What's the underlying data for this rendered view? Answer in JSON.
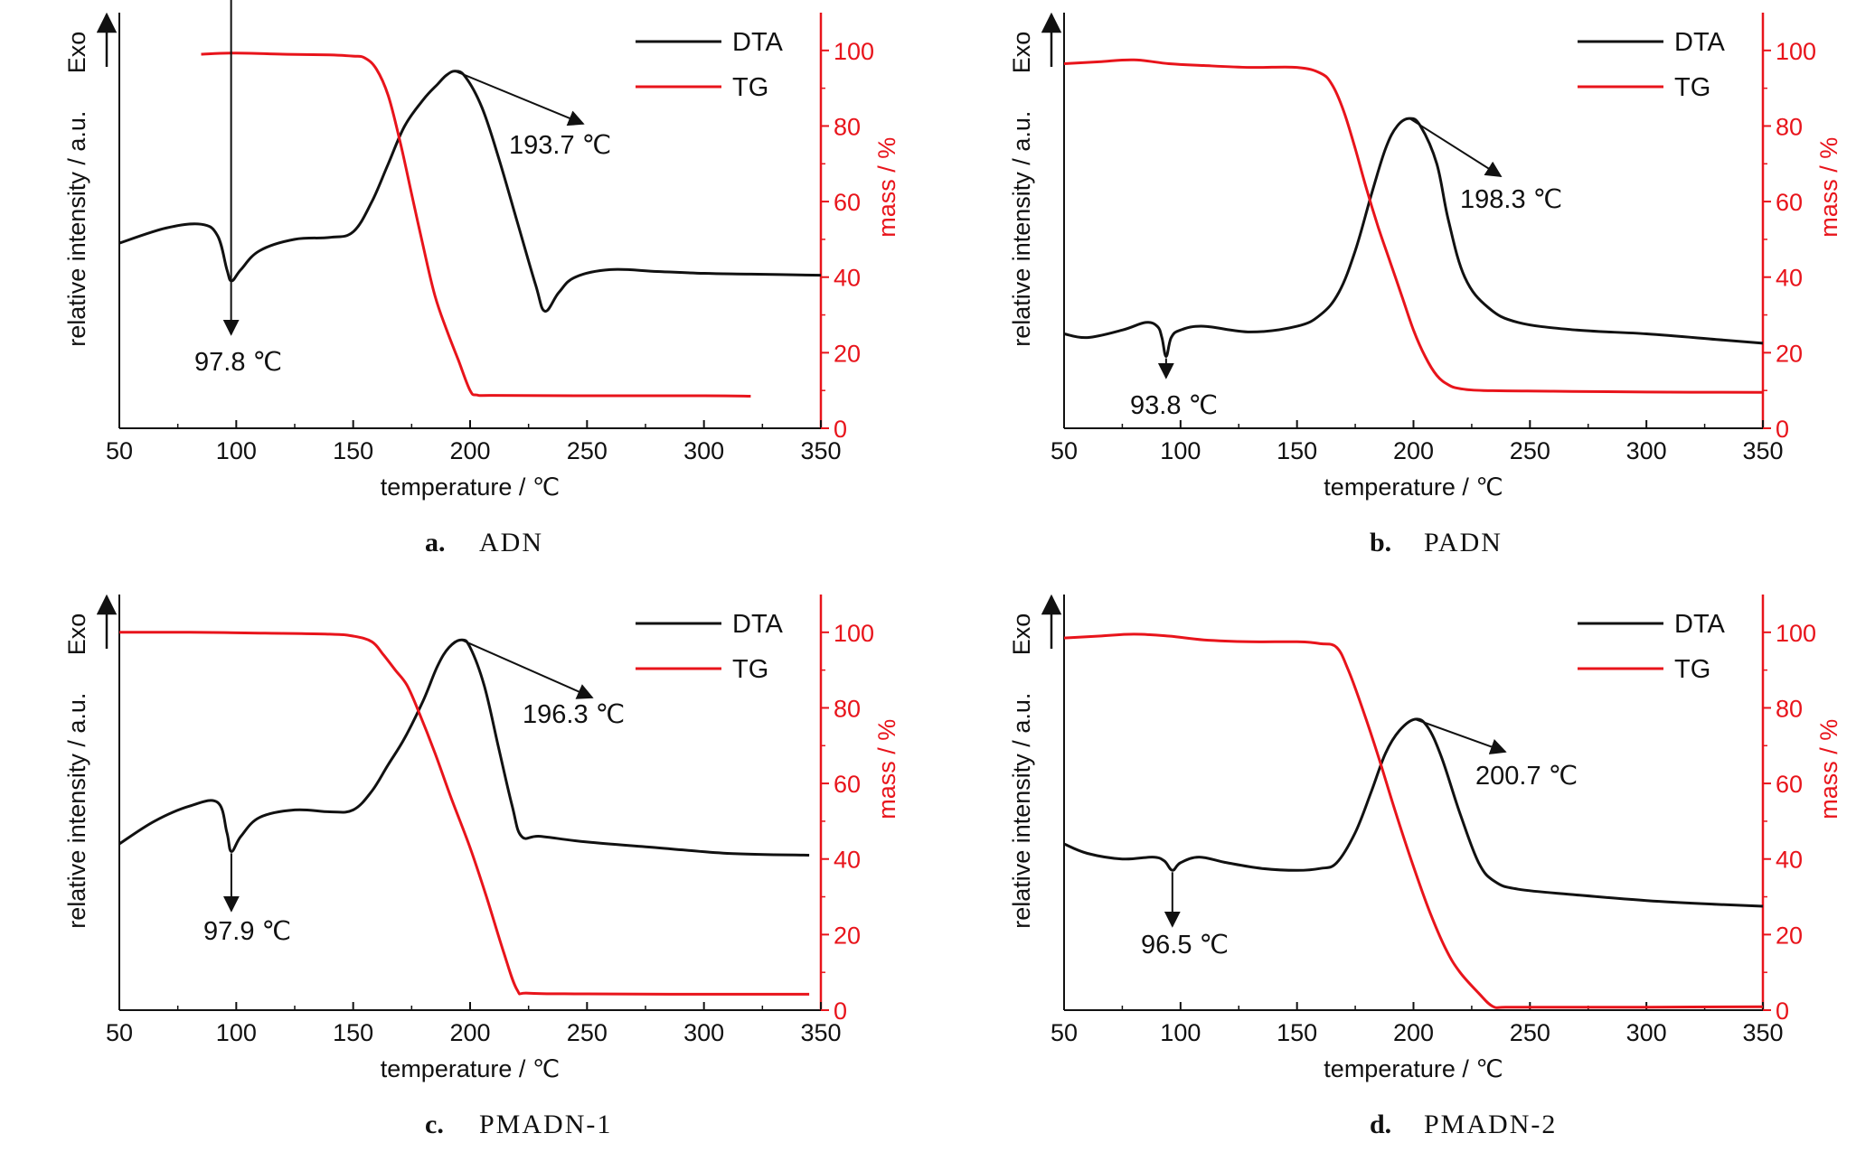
{
  "colors": {
    "dta": "#111111",
    "tg": "#e8141b",
    "axis": "#111111"
  },
  "chart_data": [
    {
      "type": "line",
      "panel_letter": "a.",
      "panel_name": "ADN",
      "xlabel": "temperature / ℃",
      "ylabel": "relative intensity / a.u.",
      "y2label": "mass / %",
      "exo_label": "Exo",
      "xlim": [
        50,
        350
      ],
      "y2lim": [
        0,
        110
      ],
      "xticks": [
        50,
        100,
        150,
        200,
        250,
        300,
        350
      ],
      "y2ticks": [
        0,
        20,
        40,
        60,
        80,
        100
      ],
      "legend": [
        "DTA",
        "TG"
      ],
      "legend_position": "top-right",
      "series": [
        {
          "name": "DTA",
          "axis": "left",
          "x": [
            50,
            70,
            85,
            92,
            96,
            98,
            102,
            110,
            125,
            140,
            150,
            158,
            165,
            172,
            180,
            186,
            190,
            193.7,
            198,
            205,
            212,
            220,
            228,
            232,
            238,
            245,
            260,
            280,
            300,
            320,
            350
          ],
          "y": [
            49,
            53,
            54,
            51,
            42,
            39,
            42,
            47,
            50,
            50.5,
            52,
            60,
            70,
            80,
            87,
            91,
            93.5,
            94.5,
            93,
            85,
            72,
            55,
            38,
            31,
            36,
            40,
            42,
            41.5,
            41,
            40.8,
            40.5
          ]
        },
        {
          "name": "TG",
          "axis": "right",
          "x": [
            85,
            100,
            120,
            140,
            150,
            155,
            160,
            165,
            170,
            175,
            180,
            185,
            190,
            195,
            200,
            203,
            210,
            250,
            300,
            320
          ],
          "y": [
            99,
            99.3,
            99,
            98.8,
            98.5,
            98,
            95,
            88,
            76,
            62,
            48,
            35,
            26,
            18,
            10,
            8.8,
            8.7,
            8.6,
            8.6,
            8.5
          ]
        }
      ],
      "annotations": [
        {
          "text": "193.7 ℃",
          "x": 193.7
        },
        {
          "text": "97.8 ℃",
          "x": 97.8
        }
      ]
    },
    {
      "type": "line",
      "panel_letter": "b.",
      "panel_name": "PADN",
      "xlabel": "temperature / ℃",
      "ylabel": "relative intensity / a.u.",
      "y2label": "mass / %",
      "exo_label": "Exo",
      "xlim": [
        50,
        350
      ],
      "y2lim": [
        0,
        110
      ],
      "xticks": [
        50,
        100,
        150,
        200,
        250,
        300,
        350
      ],
      "y2ticks": [
        0,
        20,
        40,
        60,
        80,
        100
      ],
      "legend": [
        "DTA",
        "TG"
      ],
      "legend_position": "top-right",
      "series": [
        {
          "name": "DTA",
          "axis": "left",
          "x": [
            50,
            60,
            75,
            85,
            90,
            92,
            93.8,
            96,
            100,
            110,
            130,
            150,
            160,
            168,
            175,
            182,
            188,
            193,
            198.3,
            203,
            210,
            215,
            222,
            232,
            245,
            270,
            300,
            330,
            350
          ],
          "y": [
            25,
            24,
            26,
            28,
            27,
            24,
            19,
            24,
            26,
            27,
            25.5,
            27,
            30,
            36,
            47,
            62,
            74,
            80,
            82,
            80,
            70,
            55,
            40,
            32,
            28,
            26,
            25,
            23.5,
            22.5
          ]
        },
        {
          "name": "TG",
          "axis": "right",
          "x": [
            50,
            65,
            80,
            95,
            110,
            130,
            150,
            160,
            165,
            170,
            175,
            180,
            185,
            190,
            195,
            200,
            205,
            210,
            215,
            220,
            230,
            260,
            300,
            350
          ],
          "y": [
            96.5,
            97,
            97.5,
            96.5,
            96,
            95.5,
            95.5,
            94,
            91,
            84,
            74,
            63,
            53,
            44,
            35,
            26,
            19,
            14,
            11.5,
            10.5,
            10,
            9.8,
            9.6,
            9.5
          ]
        }
      ],
      "annotations": [
        {
          "text": "198.3 ℃",
          "x": 198.3
        },
        {
          "text": "93.8 ℃",
          "x": 93.8
        }
      ]
    },
    {
      "type": "line",
      "panel_letter": "c.",
      "panel_name": "PMADN-1",
      "xlabel": "temperature / ℃",
      "ylabel": "relative intensity / a.u.",
      "y2label": "mass / %",
      "exo_label": "Exo",
      "xlim": [
        50,
        350
      ],
      "y2lim": [
        0,
        110
      ],
      "xticks": [
        50,
        100,
        150,
        200,
        250,
        300,
        350
      ],
      "y2ticks": [
        0,
        20,
        40,
        60,
        80,
        100
      ],
      "legend": [
        "DTA",
        "TG"
      ],
      "legend_position": "top-right",
      "series": [
        {
          "name": "DTA",
          "axis": "left",
          "x": [
            50,
            65,
            80,
            92,
            96,
            97.9,
            102,
            110,
            125,
            140,
            150,
            158,
            165,
            172,
            180,
            186,
            191,
            196.3,
            200,
            206,
            212,
            218,
            222,
            230,
            250,
            280,
            310,
            345
          ],
          "y": [
            44,
            50,
            54,
            55,
            47,
            42,
            46,
            51,
            53,
            52.5,
            53,
            58,
            65,
            72,
            82,
            91,
            96,
            98,
            96,
            86,
            70,
            54,
            46,
            46,
            44.5,
            43,
            41.5,
            41
          ]
        },
        {
          "name": "TG",
          "axis": "right",
          "x": [
            50,
            80,
            110,
            140,
            150,
            158,
            163,
            168,
            173,
            178,
            185,
            192,
            200,
            207,
            214,
            220,
            225,
            250,
            300,
            345
          ],
          "y": [
            100,
            100,
            99.8,
            99.5,
            99,
            97.5,
            94,
            90,
            86,
            79,
            68,
            56,
            43,
            30,
            16,
            5.5,
            4.5,
            4.3,
            4.2,
            4.2
          ]
        }
      ],
      "annotations": [
        {
          "text": "196.3 ℃",
          "x": 196.3
        },
        {
          "text": "97.9 ℃",
          "x": 97.9
        }
      ]
    },
    {
      "type": "line",
      "panel_letter": "d.",
      "panel_name": "PMADN-2",
      "xlabel": "temperature / ℃",
      "ylabel": "relative intensity / a.u.",
      "y2label": "mass / %",
      "exo_label": "Exo",
      "xlim": [
        50,
        350
      ],
      "y2lim": [
        0,
        110
      ],
      "xticks": [
        50,
        100,
        150,
        200,
        250,
        300,
        350
      ],
      "y2ticks": [
        0,
        20,
        40,
        60,
        80,
        100
      ],
      "legend": [
        "DTA",
        "TG"
      ],
      "legend_position": "top-right",
      "series": [
        {
          "name": "DTA",
          "axis": "left",
          "x": [
            50,
            60,
            75,
            88,
            93,
            96.5,
            100,
            108,
            120,
            135,
            150,
            160,
            167,
            175,
            182,
            188,
            194,
            200.7,
            206,
            212,
            220,
            228,
            235,
            245,
            270,
            300,
            330,
            350
          ],
          "y": [
            44,
            41.5,
            40,
            40.5,
            39.5,
            37,
            39,
            40.5,
            39,
            37.5,
            37,
            37.5,
            39,
            47,
            58,
            68,
            74,
            77,
            75,
            67,
            52,
            39,
            34,
            32,
            30.5,
            29,
            28,
            27.5
          ]
        },
        {
          "name": "TG",
          "axis": "right",
          "x": [
            50,
            65,
            80,
            95,
            110,
            130,
            150,
            160,
            167,
            172,
            178,
            185,
            192,
            200,
            207,
            214,
            220,
            228,
            234,
            240,
            260,
            300,
            350
          ],
          "y": [
            98.5,
            99,
            99.5,
            99,
            98,
            97.5,
            97.5,
            97,
            96,
            90,
            80,
            67,
            53,
            38,
            26,
            16,
            10,
            4.5,
            1,
            0.8,
            0.8,
            0.8,
            0.9
          ]
        }
      ],
      "annotations": [
        {
          "text": "200.7 ℃",
          "x": 200.7
        },
        {
          "text": "96.5 ℃",
          "x": 96.5
        }
      ]
    }
  ]
}
